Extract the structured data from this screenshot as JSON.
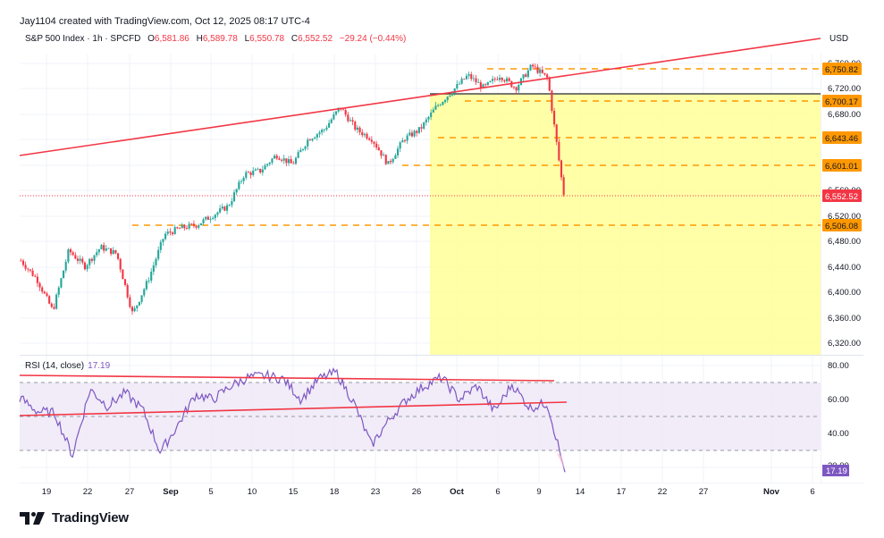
{
  "header": {
    "credit": "Jay1104 created with TradingView.com, Oct 12, 2025 08:17 UTC-4",
    "symbol": "S&P 500 Index · 1h · SPCFD",
    "open_label": "O",
    "open": "6,581.86",
    "high_label": "H",
    "high": "6,589.78",
    "low_label": "L",
    "low": "6,550.78",
    "close_label": "C",
    "close": "6,552.52",
    "change": "−29.24 (−0.44%)"
  },
  "currency": "USD",
  "rsi": {
    "label": "RSI (14, close)",
    "value": "17.19"
  },
  "branding": {
    "logo_text": "TradingView"
  },
  "colors": {
    "up": "#26a69a",
    "down": "#f23645",
    "trendline": "#f23645",
    "level": "#ff9800",
    "zone": "#ffff99",
    "rsi_line": "#7e57c2",
    "rsi_band": "#ede7f6",
    "last_price": "#f23645"
  },
  "chart_data": [
    {
      "type": "candlestick",
      "title": "S&P 500 Index · 1h · SPCFD",
      "xlabel": "",
      "ylabel": "USD",
      "x_ticks": [
        "19",
        "22",
        "27",
        "Sep",
        "5",
        "10",
        "15",
        "18",
        "23",
        "26",
        "Oct",
        "6",
        "9",
        "14",
        "17",
        "22",
        "27",
        "Nov",
        "6"
      ],
      "y_ticks": [
        6760.0,
        6720.0,
        6680.0,
        6640.0,
        6600.0,
        6560.0,
        6520.0,
        6480.0,
        6440.0,
        6400.0,
        6360.0,
        6320.0
      ],
      "ylim": [
        6305,
        6800
      ],
      "grid": true,
      "ohlc_last": {
        "open": 6581.86,
        "high": 6589.78,
        "low": 6550.78,
        "close": 6552.52,
        "change": -29.24,
        "change_pct": -0.44
      },
      "horizontal_levels": [
        {
          "price": 6750.82,
          "label": "6,750.82",
          "style": "dashed",
          "color": "#ff9800"
        },
        {
          "price": 6700.17,
          "label": "6,700.17",
          "style": "dashed",
          "color": "#ff9800"
        },
        {
          "price": 6643.46,
          "label": "6,643.46",
          "style": "dashed",
          "color": "#ff9800"
        },
        {
          "price": 6601.01,
          "label": "6,601.01",
          "style": "dashed",
          "color": "#ff9800"
        },
        {
          "price": 6506.08,
          "label": "6,506.08",
          "style": "dashed",
          "color": "#ff9800"
        },
        {
          "price": 6552.52,
          "label": "6,552.52",
          "style": "dotted",
          "color": "#f23645",
          "note": "last price"
        },
        {
          "price": 6710.0,
          "label": "",
          "style": "solid",
          "color": "#131722",
          "note": "top of highlighted zone"
        }
      ],
      "annotations": [
        {
          "type": "trendline",
          "from": [
            "Aug 18",
            6622
          ],
          "to": [
            "Nov 6",
            6804
          ],
          "color": "#f23645"
        },
        {
          "type": "rectangle",
          "from_x": "Sep 29",
          "to_x": "right edge",
          "y_range": [
            6305,
            6710
          ],
          "color": "#ffff99"
        }
      ],
      "approx_close_path": [
        [
          "Aug 18",
          6449
        ],
        [
          "Aug 20",
          6420
        ],
        [
          "Aug 21",
          6370
        ],
        [
          "Aug 22",
          6465
        ],
        [
          "Aug 25",
          6440
        ],
        [
          "Aug 27",
          6470
        ],
        [
          "Aug 29",
          6460
        ],
        [
          "Sep 2",
          6365
        ],
        [
          "Sep 3",
          6420
        ],
        [
          "Sep 4",
          6490
        ],
        [
          "Sep 5",
          6500
        ],
        [
          "Sep 8",
          6505
        ],
        [
          "Sep 9",
          6520
        ],
        [
          "Sep 10",
          6535
        ],
        [
          "Sep 11",
          6585
        ],
        [
          "Sep 12",
          6590
        ],
        [
          "Sep 15",
          6615
        ],
        [
          "Sep 17",
          6600
        ],
        [
          "Sep 18",
          6640
        ],
        [
          "Sep 19",
          6655
        ],
        [
          "Sep 22",
          6690
        ],
        [
          "Sep 23",
          6655
        ],
        [
          "Sep 24",
          6640
        ],
        [
          "Sep 25",
          6600
        ],
        [
          "Sep 26",
          6640
        ],
        [
          "Sep 29",
          6655
        ],
        [
          "Sep 30",
          6690
        ],
        [
          "Oct 1",
          6715
        ],
        [
          "Oct 2",
          6740
        ],
        [
          "Oct 3",
          6720
        ],
        [
          "Oct 6",
          6740
        ],
        [
          "Oct 7",
          6720
        ],
        [
          "Oct 8",
          6755
        ],
        [
          "Oct 9",
          6735
        ],
        [
          "Oct 10",
          6552
        ]
      ]
    },
    {
      "type": "line",
      "title": "RSI (14, close)",
      "y_ticks": [
        80.0,
        60.0,
        40.0,
        20.0
      ],
      "ylim": [
        12,
        85
      ],
      "bands": [
        70,
        50,
        30
      ],
      "last_value": 17.19,
      "annotations": [
        {
          "type": "trendline",
          "from": [
            "Aug 18",
            75
          ],
          "to": [
            "Oct 10",
            71
          ],
          "color": "#f23645"
        },
        {
          "type": "trendline",
          "from": [
            "Aug 18",
            51
          ],
          "to": [
            "Oct 10",
            58.5
          ],
          "color": "#f23645"
        }
      ],
      "approx_values": [
        [
          "Aug 18",
          61
        ],
        [
          "Aug 19",
          53
        ],
        [
          "Aug 20",
          52
        ],
        [
          "Aug 21",
          27
        ],
        [
          "Aug 22",
          66
        ],
        [
          "Aug 25",
          56
        ],
        [
          "Aug 27",
          64
        ],
        [
          "Aug 29",
          54
        ],
        [
          "Sep 2",
          29
        ],
        [
          "Sep 3",
          45
        ],
        [
          "Sep 4",
          63
        ],
        [
          "Sep 5",
          60
        ],
        [
          "Sep 8",
          68
        ],
        [
          "Sep 10",
          73
        ],
        [
          "Sep 12",
          74
        ],
        [
          "Sep 15",
          72
        ],
        [
          "Sep 17",
          60
        ],
        [
          "Sep 19",
          72
        ],
        [
          "Sep 22",
          76
        ],
        [
          "Sep 23",
          58
        ],
        [
          "Sep 25",
          33
        ],
        [
          "Sep 26",
          48
        ],
        [
          "Sep 29",
          60
        ],
        [
          "Oct 1",
          68
        ],
        [
          "Oct 2",
          73
        ],
        [
          "Oct 3",
          60
        ],
        [
          "Oct 6",
          68
        ],
        [
          "Oct 7",
          53
        ],
        [
          "Oct 8",
          69
        ],
        [
          "Oct 9",
          55
        ],
        [
          "Oct 10 a",
          58
        ],
        [
          "Oct 10",
          17.19
        ]
      ]
    }
  ]
}
